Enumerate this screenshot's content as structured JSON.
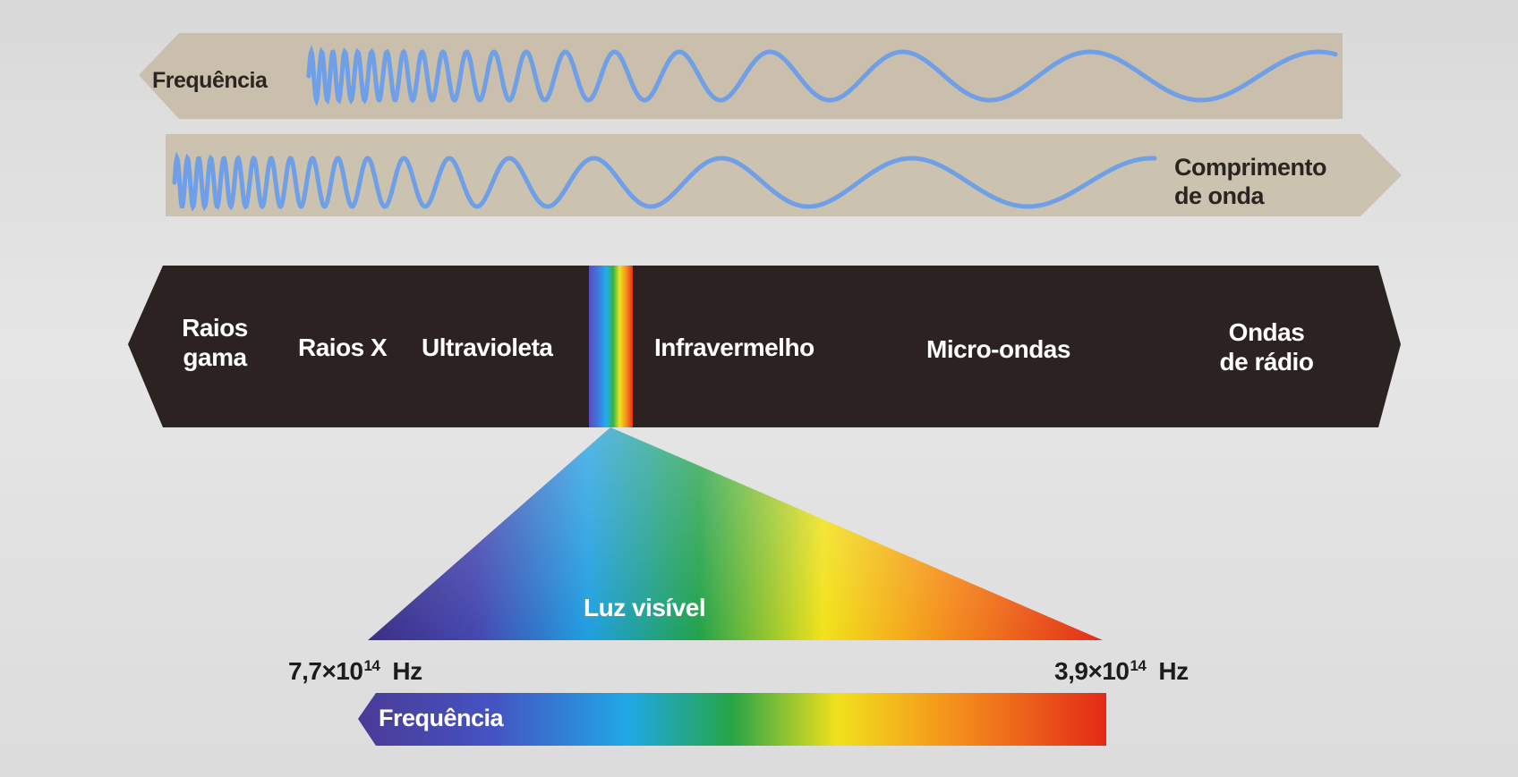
{
  "colors": {
    "band": "#c9bfac",
    "spectrum_dark": "#2b2221",
    "wave": "#6f9fe6",
    "label_dark": "#2a2521",
    "label_light": "#ffffff"
  },
  "top_band": {
    "label": "Frequência"
  },
  "second_band": {
    "label_line1": "Comprimento",
    "label_line2": "de onda"
  },
  "spectrum": {
    "regions": [
      {
        "id": "gamma",
        "line1": "Raios",
        "line2": "gama"
      },
      {
        "id": "xray",
        "line1": "Raios X"
      },
      {
        "id": "uv",
        "line1": "Ultravioleta"
      },
      {
        "id": "ir",
        "line1": "Infravermelho"
      },
      {
        "id": "micro",
        "line1": "Micro-ondas"
      },
      {
        "id": "radio",
        "line1": "Ondas",
        "line2": "de rádio"
      }
    ]
  },
  "visible": {
    "label": "Luz visível",
    "freq_high": {
      "mantissa": "7,7",
      "times": "×",
      "base": "10",
      "exponent": "14",
      "unit": "Hz"
    },
    "freq_low": {
      "mantissa": "3,9",
      "times": "×",
      "base": "10",
      "exponent": "14",
      "unit": "Hz"
    }
  },
  "bottom_bar": {
    "label": "Frequência"
  }
}
